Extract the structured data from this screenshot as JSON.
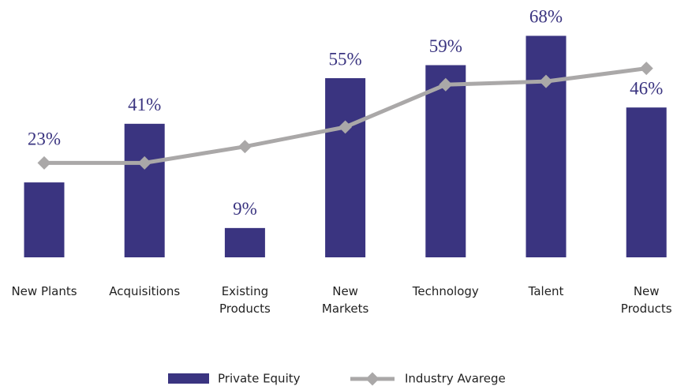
{
  "chart_data": {
    "type": "bar",
    "categories": [
      "New Plants",
      "Acquisitions",
      "Existing\nProducts",
      "New\nMarkets",
      "Technology",
      "Talent",
      "New\nProducts"
    ],
    "series": [
      {
        "name": "Private Equity",
        "color": "#3a3480",
        "values": [
          23,
          41,
          9,
          55,
          59,
          68,
          46
        ],
        "value_labels": [
          "23%",
          "41%",
          "9%",
          "55%",
          "59%",
          "68%",
          "46%"
        ]
      },
      {
        "name": "Industry Avarege",
        "type": "line",
        "color": "#aaa8a8",
        "values": [
          29,
          29,
          34,
          40,
          53,
          54,
          58
        ]
      }
    ],
    "ylim": [
      0,
      79
    ]
  }
}
